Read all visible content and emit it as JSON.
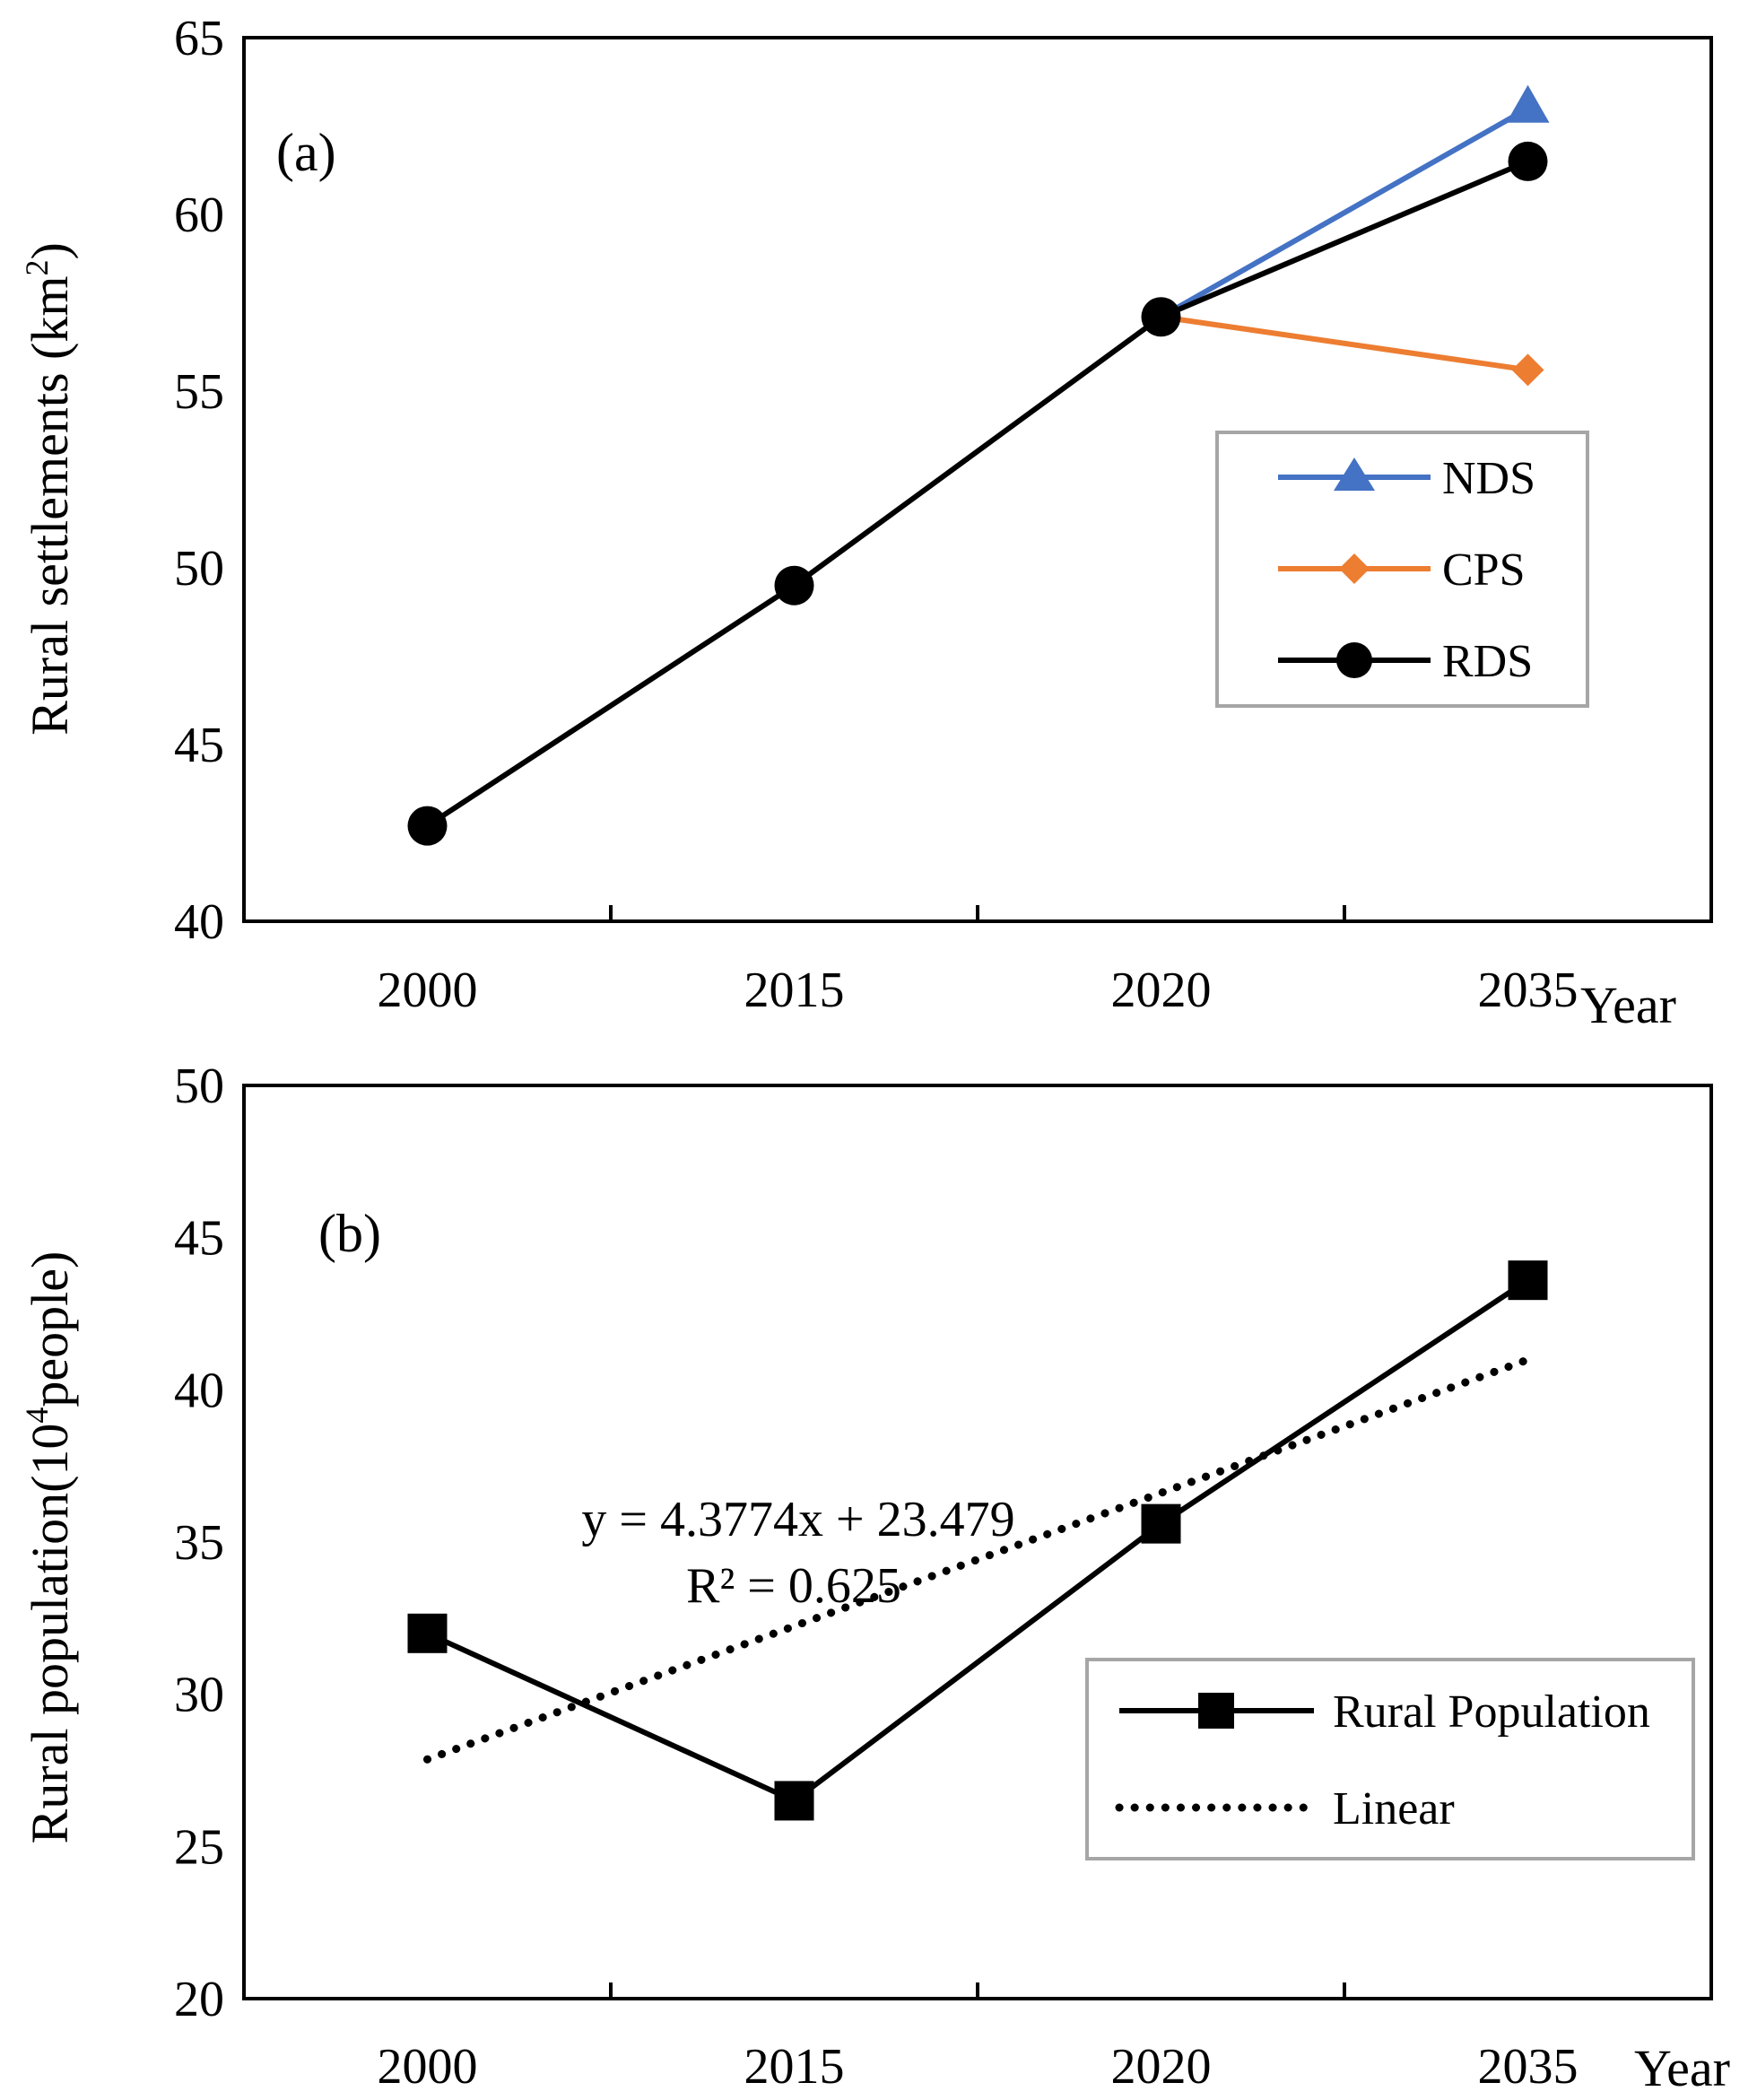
{
  "chart_data": [
    {
      "type": "line",
      "panel_label": "(a)",
      "ylabel": "Rural settlements (km",
      "ylabel_sup": "2",
      "ylabel_close": ")",
      "xlabel": "Year",
      "categories": [
        "2000",
        "2015",
        "2020",
        "2035"
      ],
      "ylim": [
        40,
        65
      ],
      "yticks": [
        "40",
        "45",
        "50",
        "55",
        "60",
        "65"
      ],
      "grid": false,
      "legend_position": "right",
      "series": [
        {
          "name": "NDS",
          "values": [
            42.7,
            49.5,
            57.1,
            63.0
          ],
          "color": "#4472C4",
          "marker": "triangle"
        },
        {
          "name": "CPS",
          "values": [
            42.7,
            49.5,
            57.1,
            55.6
          ],
          "color": "#ED7D31",
          "marker": "diamond"
        },
        {
          "name": "RDS",
          "values": [
            42.7,
            49.5,
            57.1,
            61.5
          ],
          "color": "#000000",
          "marker": "circle"
        }
      ]
    },
    {
      "type": "line",
      "panel_label": "(b)",
      "ylabel": "Rural population(10",
      "ylabel_sup": "4",
      "ylabel_close": "people)",
      "xlabel": "Year",
      "categories": [
        "2000",
        "2015",
        "2020",
        "2035"
      ],
      "ylim": [
        20,
        50
      ],
      "yticks": [
        "20",
        "25",
        "30",
        "35",
        "40",
        "45",
        "50"
      ],
      "grid": false,
      "legend_position": "right",
      "series": [
        {
          "name": "Rural Population",
          "values": [
            32.0,
            26.5,
            35.6,
            43.6
          ],
          "color": "#000000",
          "marker": "square"
        },
        {
          "name": "Linear",
          "values": [
            27.86,
            32.24,
            36.61,
            40.99
          ],
          "color": "#000000",
          "style": "dotted"
        }
      ],
      "trendline": {
        "equation": "y = 4.3774x + 23.479",
        "r2": "R² = 0.625"
      }
    }
  ]
}
